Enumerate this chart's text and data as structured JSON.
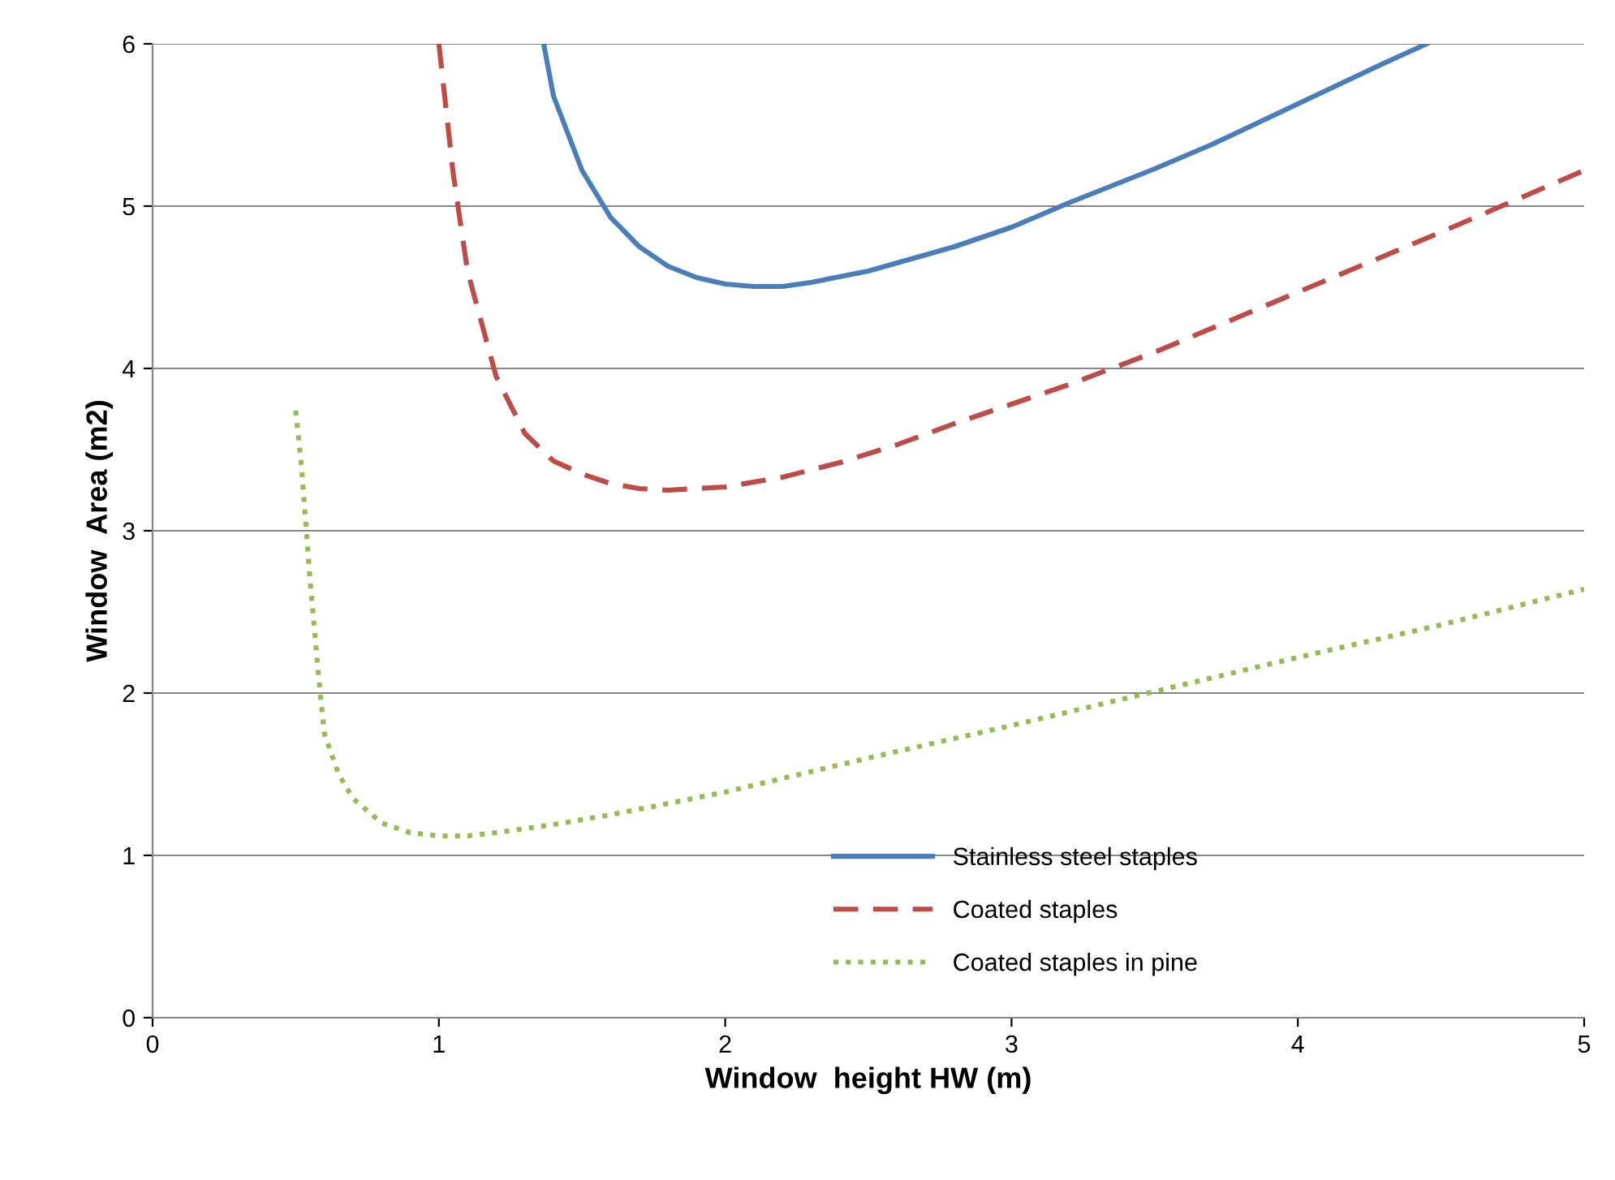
{
  "chart_data": {
    "type": "line",
    "xlabel": "Window  height HW (m)",
    "ylabel": "Window  Area (m2)",
    "xlim": [
      0,
      5
    ],
    "xticks": [
      0,
      1,
      2,
      3,
      4,
      5
    ],
    "ylim": [
      0,
      6
    ],
    "yticks": [
      0,
      1,
      2,
      3,
      4,
      5,
      6
    ],
    "grid": "y",
    "legend": "bottom right",
    "marker": "none",
    "series": [
      {
        "name": "Stainless steel staples",
        "color": "#4a7ebb",
        "line_style": "solid",
        "x": [
          1.366,
          1.4,
          1.5,
          1.6,
          1.7,
          1.8,
          1.9,
          2.0,
          2.1,
          2.2,
          2.3,
          2.5,
          2.6,
          2.8,
          3.0,
          3.2,
          3.5,
          3.7,
          4.0,
          4.3,
          4.45
        ],
        "values": [
          6.0,
          5.68,
          5.22,
          4.93,
          4.75,
          4.63,
          4.56,
          4.52,
          4.505,
          4.505,
          4.53,
          4.6,
          4.65,
          4.75,
          4.87,
          5.02,
          5.23,
          5.38,
          5.63,
          5.88,
          6.0
        ]
      },
      {
        "name": "Coated staples",
        "color": "#be4b48",
        "line_style": "dashed",
        "x": [
          1.0,
          1.05,
          1.1,
          1.2,
          1.3,
          1.4,
          1.5,
          1.6,
          1.7,
          1.8,
          2.0,
          2.2,
          2.4,
          2.6,
          2.8,
          3.0,
          3.2,
          3.5,
          4.0,
          4.5,
          5.0
        ],
        "values": [
          6.0,
          5.2,
          4.6,
          3.95,
          3.6,
          3.43,
          3.35,
          3.29,
          3.26,
          3.25,
          3.27,
          3.33,
          3.42,
          3.53,
          3.66,
          3.78,
          3.9,
          4.1,
          4.47,
          4.84,
          5.22
        ]
      },
      {
        "name": "Coated staples in pine",
        "color": "#98b954",
        "line_style": "dotted",
        "x": [
          0.5,
          0.52,
          0.55,
          0.58,
          0.6,
          0.65,
          0.7,
          0.8,
          0.9,
          1.0,
          1.1,
          1.2,
          1.4,
          1.6,
          1.8,
          2.0,
          2.5,
          3.0,
          3.5,
          4.0,
          4.5,
          5.0
        ],
        "values": [
          3.74,
          3.4,
          2.7,
          2.1,
          1.75,
          1.5,
          1.35,
          1.2,
          1.14,
          1.12,
          1.12,
          1.14,
          1.19,
          1.25,
          1.32,
          1.39,
          1.6,
          1.8,
          2.01,
          2.22,
          2.42,
          2.64
        ]
      }
    ]
  }
}
